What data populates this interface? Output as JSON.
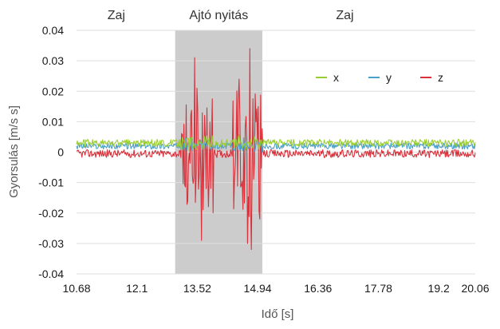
{
  "chart_data": {
    "type": "line",
    "ylabel": "Gyorsulás [m/s s]",
    "xlabel": "Idő [s]",
    "x_ticks": [
      "10.68",
      "12.1",
      "13.52",
      "14.94",
      "16.36",
      "17.78",
      "19.2",
      "20.06"
    ],
    "y_ticks": [
      "0.04",
      "0.03",
      "0.02",
      "0.01",
      "0",
      "-0.01",
      "-0.02",
      "-0.03",
      "-0.04"
    ],
    "xlim": [
      10.68,
      20.06
    ],
    "ylim": [
      -0.04,
      0.04
    ],
    "grid": "horizontal",
    "legend_position": "top-right",
    "regions": [
      {
        "label": "Zaj",
        "x_start": 10.68,
        "x_end": 13.0,
        "shaded": false
      },
      {
        "label": "Ajtó nyitás",
        "x_start": 13.0,
        "x_end": 15.05,
        "shaded": true
      },
      {
        "label": "Zaj",
        "x_start": 15.05,
        "x_end": 20.06,
        "shaded": false
      }
    ],
    "series": [
      {
        "name": "x",
        "color": "#9acd32",
        "baseline": 0.003,
        "noise": 0.0012,
        "event_amp": 0.003
      },
      {
        "name": "y",
        "color": "#4aa0c8",
        "baseline": 0.002,
        "noise": 0.001,
        "event_amp": 0.003
      },
      {
        "name": "z",
        "color": "#d9303a",
        "baseline": -0.0005,
        "noise": 0.0013,
        "event_amp": 0.022,
        "peaks": [
          {
            "x": 13.45,
            "y": 0.031
          },
          {
            "x": 13.62,
            "y": -0.029
          },
          {
            "x": 13.52,
            "y": 0.021
          },
          {
            "x": 14.5,
            "y": 0.024
          },
          {
            "x": 14.7,
            "y": -0.03
          },
          {
            "x": 14.75,
            "y": 0.034
          },
          {
            "x": 14.8,
            "y": -0.032
          },
          {
            "x": 14.95,
            "y": 0.015
          }
        ]
      }
    ]
  }
}
